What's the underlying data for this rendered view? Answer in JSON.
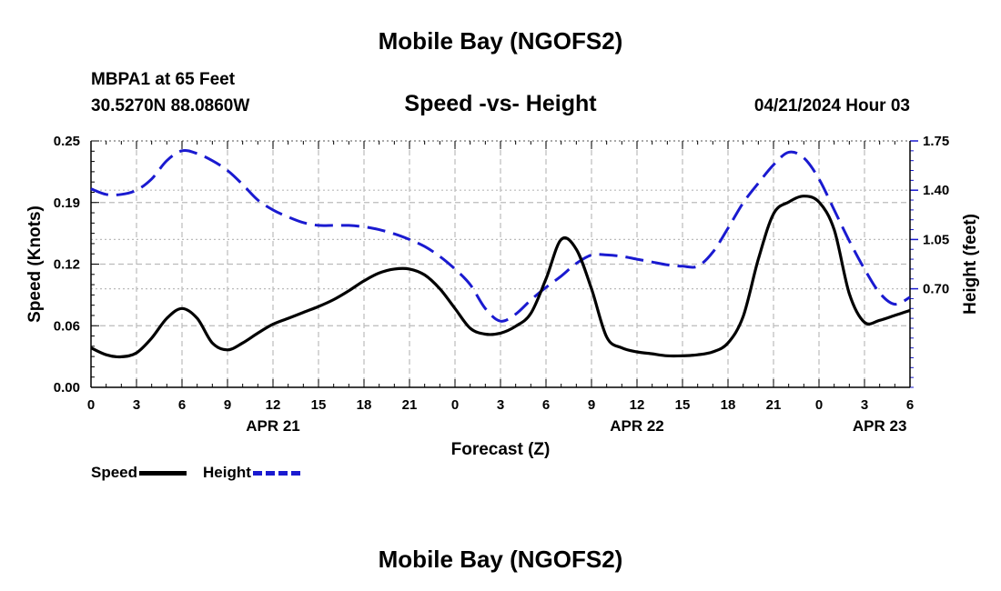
{
  "header": {
    "title": "Mobile Bay (NGOFS2)",
    "station": "MBPA1 at 65 Feet",
    "coords": "30.5270N  88.0860W",
    "chart_title": "Speed -vs- Height",
    "timestamp": "04/21/2024 Hour 03"
  },
  "footer": {
    "title": "Mobile Bay (NGOFS2)"
  },
  "legend": {
    "speed_label": "Speed",
    "height_label": "Height"
  },
  "colors": {
    "speed": "#000000",
    "height": "#1a1ad0",
    "grid": "#bbbbbb"
  },
  "chart_data": {
    "type": "line",
    "xlabel": "Forecast (Z)",
    "ylabel": "Speed (Knots)",
    "y2label": "Height (feet)",
    "x_hours": [
      0,
      1,
      2,
      3,
      4,
      5,
      6,
      7,
      8,
      9,
      10,
      11,
      12,
      13,
      14,
      15,
      16,
      17,
      18,
      19,
      20,
      21,
      22,
      23,
      24,
      25,
      26,
      27,
      28,
      29,
      30,
      31,
      32,
      33,
      34,
      35,
      36,
      37,
      38,
      39,
      40,
      41,
      42,
      43,
      44,
      45,
      46,
      47,
      48,
      49,
      50,
      51,
      52,
      53,
      54
    ],
    "x_tick_labels": [
      "0",
      "3",
      "6",
      "9",
      "12",
      "15",
      "18",
      "21",
      "0",
      "3",
      "6",
      "9",
      "12",
      "15",
      "18",
      "21",
      "0",
      "3",
      "6"
    ],
    "date_labels": [
      {
        "label": "APR 21",
        "hour": 12
      },
      {
        "label": "APR 22",
        "hour": 36
      },
      {
        "label": "APR 23",
        "hour": 52
      }
    ],
    "ylim": [
      0,
      0.25
    ],
    "yticks": [
      "0.00",
      "0.06",
      "0.12",
      "0.19",
      "0.25"
    ],
    "y2lim": [
      0,
      1.75
    ],
    "y2ticks": [
      "0.70",
      "1.05",
      "1.40",
      "1.75"
    ],
    "grid": true,
    "legend_position": "bottom-left",
    "series": [
      {
        "name": "Speed",
        "axis": "left",
        "values": [
          0.04,
          0.033,
          0.031,
          0.035,
          0.05,
          0.07,
          0.08,
          0.07,
          0.045,
          0.038,
          0.045,
          0.055,
          0.064,
          0.07,
          0.076,
          0.082,
          0.089,
          0.098,
          0.108,
          0.116,
          0.12,
          0.12,
          0.114,
          0.1,
          0.08,
          0.06,
          0.054,
          0.055,
          0.062,
          0.075,
          0.11,
          0.15,
          0.14,
          0.1,
          0.051,
          0.04,
          0.036,
          0.034,
          0.032,
          0.032,
          0.033,
          0.036,
          0.045,
          0.072,
          0.13,
          0.176,
          0.188,
          0.194,
          0.188,
          0.16,
          0.095,
          0.066,
          0.068,
          0.073,
          0.078
        ]
      },
      {
        "name": "Height",
        "axis": "right",
        "values": [
          1.41,
          1.37,
          1.37,
          1.4,
          1.48,
          1.61,
          1.68,
          1.66,
          1.61,
          1.54,
          1.44,
          1.33,
          1.26,
          1.21,
          1.17,
          1.15,
          1.15,
          1.15,
          1.14,
          1.12,
          1.09,
          1.05,
          1.0,
          0.93,
          0.84,
          0.73,
          0.56,
          0.47,
          0.52,
          0.62,
          0.71,
          0.79,
          0.88,
          0.94,
          0.94,
          0.93,
          0.91,
          0.89,
          0.87,
          0.86,
          0.86,
          0.96,
          1.13,
          1.31,
          1.45,
          1.58,
          1.67,
          1.63,
          1.48,
          1.26,
          1.04,
          0.84,
          0.67,
          0.59,
          0.64
        ]
      }
    ]
  }
}
